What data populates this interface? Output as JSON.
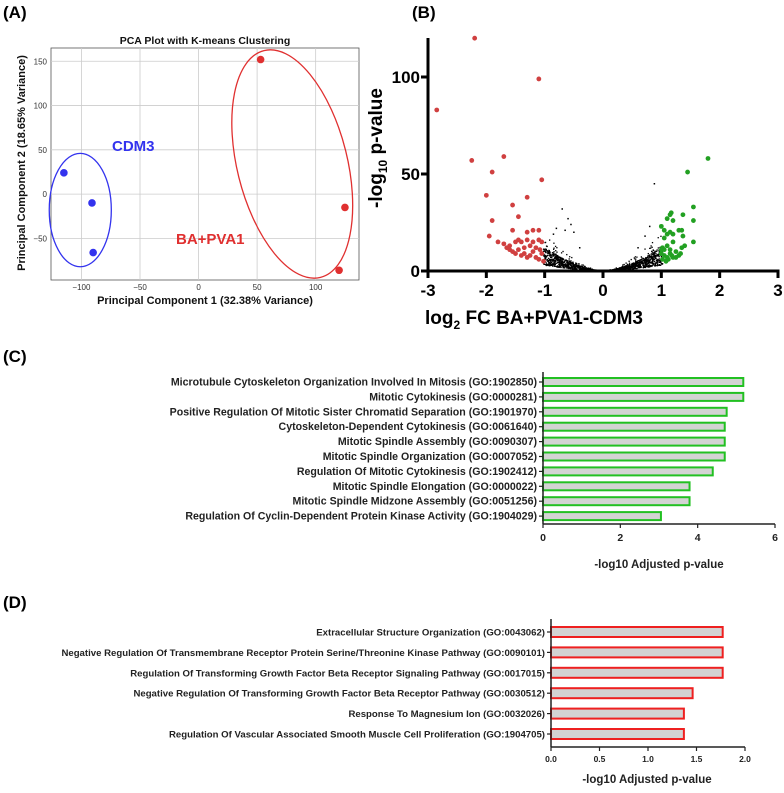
{
  "panel_labels": {
    "a": "(A)",
    "b": "(B)",
    "c": "(C)",
    "d": "(D)"
  },
  "colors": {
    "cdm3": "#3333ee",
    "ba_pva1": "#e03030",
    "volcano_down": "#d04040",
    "volcano_up": "#22a022",
    "volcano_ns": "#000000",
    "go_up_edge": "#22c022",
    "go_down_edge": "#ee2020",
    "bar_fill": "#d3d3d3"
  },
  "chart_data": [
    {
      "type": "scatter",
      "title": "PCA Plot with K-means Clustering",
      "xlabel": "Principal Component 1 (32.38% Variance)",
      "ylabel": "Principal Component 2 (18.65% Variance)",
      "xlim": [
        -126,
        137
      ],
      "ylim": [
        -97,
        165
      ],
      "xticks": [
        "−100",
        "−50",
        "0",
        "50",
        "100"
      ],
      "xtick_values": [
        -100,
        -50,
        0,
        50,
        100
      ],
      "yticks": [
        "150",
        "100",
        "50",
        "0",
        "−50"
      ],
      "ytick_values": [
        150,
        100,
        50,
        0,
        -50
      ],
      "grid": true,
      "series": [
        {
          "name": "CDM3",
          "points": [
            [
              -115,
              24
            ],
            [
              -91,
              -10
            ],
            [
              -90,
              -66
            ]
          ],
          "ellipse": {
            "cx": -101,
            "cy": -18,
            "rx": 26.5,
            "ry": 64,
            "angle": 0
          }
        },
        {
          "name": "BA+PVA1",
          "points": [
            [
              53,
              152
            ],
            [
              125,
              -15
            ],
            [
              120,
              -86
            ]
          ],
          "ellipse": {
            "cx": 80,
            "cy": 34,
            "rx": 47,
            "ry": 132,
            "angle": -14
          }
        }
      ]
    },
    {
      "type": "scatter",
      "title": "",
      "xlabel_parts": [
        "log",
        "2",
        " FC BA+PVA1-CDM3"
      ],
      "ylabel_parts": [
        "-log",
        "10",
        " p-value"
      ],
      "xlim": [
        -3,
        3
      ],
      "ylim": [
        0,
        120
      ],
      "xticks": [
        "-3",
        "-2",
        "-1",
        "0",
        "1",
        "2",
        "3"
      ],
      "xtick_values": [
        -3,
        -2,
        -1,
        0,
        1,
        2,
        3
      ],
      "yticks": [
        "0",
        "50",
        "100"
      ],
      "ytick_values": [
        0,
        50,
        100
      ],
      "series": [
        {
          "name": "down",
          "points": [
            [
              -2.2,
              120
            ],
            [
              -1.1,
              99
            ],
            [
              -2.85,
              83
            ],
            [
              -2.25,
              57
            ],
            [
              -1.7,
              59
            ],
            [
              -1.9,
              51
            ],
            [
              -1.05,
              47
            ],
            [
              -2.0,
              39
            ],
            [
              -1.3,
              38
            ],
            [
              -1.55,
              34
            ],
            [
              -1.45,
              28
            ],
            [
              -1.9,
              26
            ],
            [
              -1.55,
              21
            ],
            [
              -1.95,
              18
            ],
            [
              -1.3,
              20
            ],
            [
              -1.2,
              21
            ],
            [
              -1.1,
              21
            ],
            [
              -1.8,
              15
            ],
            [
              -1.7,
              14
            ],
            [
              -1.65,
              12
            ],
            [
              -1.6,
              13
            ],
            [
              -1.5,
              15
            ],
            [
              -1.45,
              16
            ],
            [
              -1.4,
              15
            ],
            [
              -1.35,
              12
            ],
            [
              -1.3,
              16
            ],
            [
              -1.25,
              13
            ],
            [
              -1.2,
              15
            ],
            [
              -1.1,
              16
            ],
            [
              -1.05,
              15
            ],
            [
              -1.55,
              10
            ],
            [
              -1.5,
              9
            ],
            [
              -1.45,
              11
            ],
            [
              -1.4,
              8
            ],
            [
              -1.35,
              9
            ],
            [
              -1.3,
              7
            ],
            [
              -1.25,
              8
            ],
            [
              -1.2,
              10
            ],
            [
              -1.15,
              7
            ],
            [
              -1.1,
              6
            ],
            [
              -1.05,
              9
            ],
            [
              -1.6,
              11
            ],
            [
              -1.15,
              12
            ],
            [
              -1.08,
              11
            ],
            [
              -1.02,
              5
            ]
          ]
        },
        {
          "name": "up",
          "points": [
            [
              1.8,
              58
            ],
            [
              1.45,
              51
            ],
            [
              1.55,
              33
            ],
            [
              1.55,
              26
            ],
            [
              1.55,
              15
            ],
            [
              1.37,
              29
            ],
            [
              1.17,
              30
            ],
            [
              1.15,
              29
            ],
            [
              1.1,
              27
            ],
            [
              1.3,
              21
            ],
            [
              1.35,
              21
            ],
            [
              1.2,
              26
            ],
            [
              1.0,
              23
            ],
            [
              1.05,
              21
            ],
            [
              1.1,
              19
            ],
            [
              1.15,
              20
            ],
            [
              1.2,
              19
            ],
            [
              1.37,
              18
            ],
            [
              1.05,
              17
            ],
            [
              1.4,
              13
            ],
            [
              1.35,
              12
            ],
            [
              1.2,
              15
            ],
            [
              1.1,
              13
            ],
            [
              1.02,
              12
            ],
            [
              1.05,
              11
            ],
            [
              1.15,
              11
            ],
            [
              1.25,
              10
            ],
            [
              1.3,
              8
            ],
            [
              1.33,
              9
            ],
            [
              1.0,
              9
            ],
            [
              1.05,
              8
            ],
            [
              1.1,
              7
            ],
            [
              1.15,
              9
            ],
            [
              1.2,
              7
            ],
            [
              1.25,
              7
            ],
            [
              1.02,
              6
            ],
            [
              1.08,
              5
            ],
            [
              1.12,
              6
            ],
            [
              1.18,
              8
            ],
            [
              1.0,
              11
            ]
          ]
        },
        {
          "name": "not significant",
          "points": [
            [
              -0.7,
              32
            ],
            [
              -0.6,
              27
            ],
            [
              -0.55,
              24
            ],
            [
              -0.8,
              22
            ],
            [
              -0.5,
              20
            ],
            [
              -0.85,
              19
            ],
            [
              -0.65,
              21
            ],
            [
              0.88,
              45
            ],
            [
              0.8,
              23
            ],
            [
              0.72,
              18
            ],
            [
              0.6,
              12
            ],
            [
              -0.4,
              12
            ]
          ]
        }
      ]
    },
    {
      "type": "bar",
      "orientation": "horizontal",
      "xlabel": "-log10 Adjusted p-value",
      "xlim": [
        0,
        6
      ],
      "xticks": [
        "0",
        "2",
        "4",
        "6"
      ],
      "xtick_values": [
        0,
        2,
        4,
        6
      ],
      "categories": [
        "Microtubule Cytoskeleton Organization Involved In Mitosis (GO:1902850)",
        "Mitotic Cytokinesis (GO:0000281)",
        "Positive Regulation Of Mitotic Sister Chromatid Separation (GO:1901970)",
        "Cytoskeleton-Dependent Cytokinesis (GO:0061640)",
        "Mitotic Spindle Assembly (GO:0090307)",
        "Mitotic Spindle Organization (GO:0007052)",
        "Regulation Of Mitotic Cytokinesis (GO:1902412)",
        "Mitotic Spindle Elongation (GO:0000022)",
        "Mitotic Spindle Midzone Assembly (GO:0051256)",
        "Regulation Of Cyclin-Dependent Protein Kinase Activity (GO:1904029)"
      ],
      "values": [
        5.18,
        5.18,
        4.75,
        4.7,
        4.7,
        4.7,
        4.39,
        3.79,
        3.79,
        3.05
      ]
    },
    {
      "type": "bar",
      "orientation": "horizontal",
      "xlabel": "-log10 Adjusted p-value",
      "xlim": [
        0,
        2
      ],
      "xticks": [
        "0.0",
        "0.5",
        "1.0",
        "1.5",
        "2.0"
      ],
      "xtick_values": [
        0,
        0.5,
        1,
        1.5,
        2
      ],
      "categories": [
        "Extracellular Structure Organization (GO:0043062)",
        "Negative Regulation Of Transmembrane Receptor Protein Serine/Threonine Kinase Pathway (GO:0090101)",
        "Regulation Of Transforming Growth Factor Beta Receptor Signaling Pathway (GO:0017015)",
        "Negative Regulation Of Transforming Growth Factor Beta Receptor Pathway (GO:0030512)",
        "Response To Magnesium Ion (GO:0032026)",
        "Regulation Of Vascular Associated Smooth Muscle Cell Proliferation (GO:1904705)"
      ],
      "values": [
        1.77,
        1.77,
        1.77,
        1.46,
        1.37,
        1.37
      ]
    }
  ]
}
